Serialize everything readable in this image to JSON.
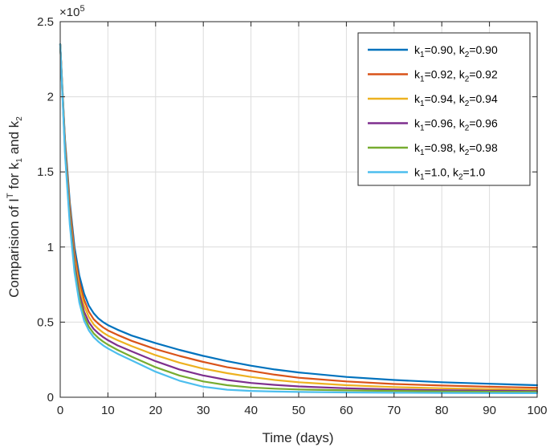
{
  "chart_data": {
    "type": "line",
    "xlabel": "Time (days)",
    "ylabel": {
      "main": "Comparision of I",
      "superscript": "T",
      "mid": " for k",
      "sub1": "1",
      "and": " and k",
      "sub2": "2"
    },
    "exponent_label": {
      "times": "×10",
      "power": "5"
    },
    "xlim": [
      0,
      100
    ],
    "ylim": [
      0,
      250000
    ],
    "grid": true,
    "legend_position": "top-right",
    "x_ticks": [
      0,
      10,
      20,
      30,
      40,
      50,
      60,
      70,
      80,
      90,
      100
    ],
    "y_ticks": [
      0,
      0.5,
      1,
      1.5,
      2,
      2.5
    ],
    "y_tick_scale": 100000,
    "x": [
      0,
      1,
      2,
      3,
      4,
      5,
      6,
      7,
      8,
      9,
      10,
      12,
      15,
      20,
      25,
      30,
      35,
      40,
      45,
      50,
      60,
      70,
      80,
      90,
      100
    ],
    "series": [
      {
        "name": "k1=0.90, k2=0.90",
        "legend_parts": [
          "k",
          "1",
          "=0.90, k",
          "2",
          "=0.90"
        ],
        "color": "#0072BD",
        "values": [
          235000,
          172000,
          130000,
          100000,
          81000,
          69000,
          61000,
          56000,
          52500,
          50000,
          48000,
          45000,
          41000,
          36000,
          31500,
          27500,
          24000,
          21000,
          18500,
          16500,
          13500,
          11500,
          10000,
          9000,
          8000
        ]
      },
      {
        "name": "k1=0.92, k2=0.92",
        "legend_parts": [
          "k",
          "1",
          "=0.92, k",
          "2",
          "=0.92"
        ],
        "color": "#D95319",
        "values": [
          235000,
          170000,
          127000,
          96000,
          77000,
          65000,
          57000,
          52000,
          49000,
          46500,
          44500,
          41500,
          37500,
          32000,
          27500,
          23500,
          20000,
          17500,
          15000,
          13000,
          10500,
          8800,
          7800,
          7000,
          6300
        ]
      },
      {
        "name": "k1=0.94, k2=0.94",
        "legend_parts": [
          "k",
          "1",
          "=0.94, k",
          "2",
          "=0.94"
        ],
        "color": "#EDB120",
        "values": [
          235000,
          168000,
          124000,
          92000,
          73000,
          61000,
          53500,
          48500,
          45500,
          43000,
          41000,
          38000,
          34000,
          28000,
          23000,
          19000,
          16000,
          13500,
          11500,
          10000,
          8000,
          6800,
          6000,
          5400,
          5000
        ]
      },
      {
        "name": "k1=0.96, k2=0.96",
        "legend_parts": [
          "k",
          "1",
          "=0.96, k",
          "2",
          "=0.96"
        ],
        "color": "#7E2F8E",
        "values": [
          235000,
          166000,
          121000,
          89000,
          69000,
          57000,
          50000,
          45500,
          42500,
          40000,
          38000,
          34500,
          30500,
          24000,
          18500,
          14500,
          11500,
          9500,
          8200,
          7200,
          6000,
          5200,
          4700,
          4400,
          4100
        ]
      },
      {
        "name": "k1=0.98, k2=0.98",
        "legend_parts": [
          "k",
          "1",
          "=0.98, k",
          "2",
          "=0.98"
        ],
        "color": "#77AC30",
        "values": [
          235000,
          164000,
          118000,
          86000,
          66000,
          54000,
          47000,
          42500,
          39500,
          37000,
          35000,
          31500,
          27000,
          20000,
          14500,
          10500,
          8000,
          6500,
          5700,
          5200,
          4600,
          4200,
          3900,
          3700,
          3500
        ]
      },
      {
        "name": "k1=1.0, k2=1.0",
        "legend_parts": [
          "k",
          "1",
          "=1.0, k",
          "2",
          "=1.0"
        ],
        "color": "#4DBEEE",
        "values": [
          235000,
          162000,
          115000,
          83000,
          63000,
          51000,
          44500,
          40000,
          37000,
          34500,
          32500,
          29000,
          24500,
          17000,
          11000,
          7000,
          5000,
          4200,
          3800,
          3500,
          3200,
          3000,
          2900,
          2800,
          2700
        ]
      }
    ]
  }
}
